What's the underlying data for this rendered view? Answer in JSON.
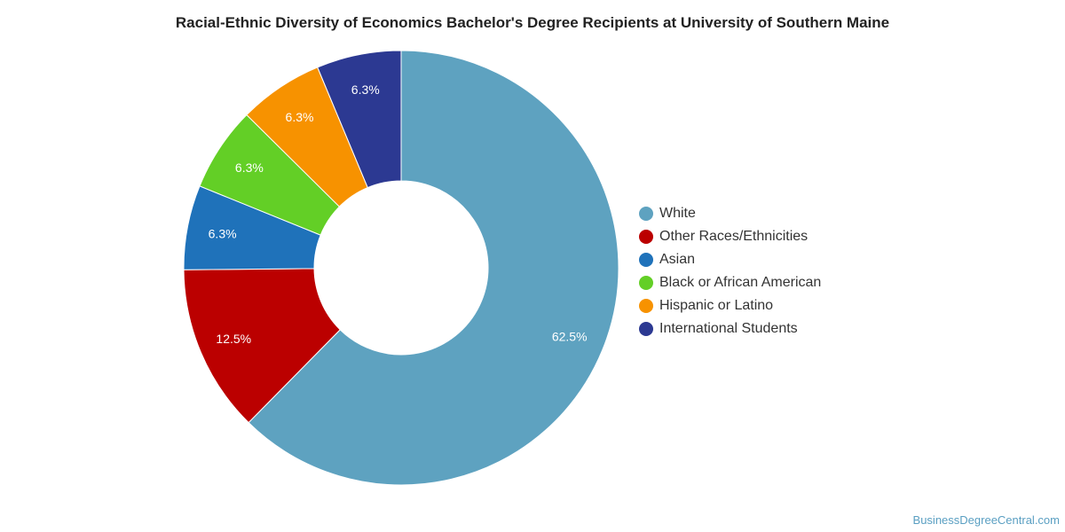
{
  "chart_data": {
    "type": "pie",
    "title": "Racial-Ethnic Diversity of Economics Bachelor's Degree Recipients at University of Southern Maine",
    "donut": true,
    "legend_position": "right",
    "slices": [
      {
        "label": "White",
        "value": 62.5,
        "display": "62.5%",
        "color": "#5ea2c0"
      },
      {
        "label": "Other Races/Ethnicities",
        "value": 12.5,
        "display": "12.5%",
        "color": "#bb0000"
      },
      {
        "label": "Asian",
        "value": 6.3,
        "display": "6.3%",
        "color": "#1f72ba"
      },
      {
        "label": "Black or African American",
        "value": 6.3,
        "display": "6.3%",
        "color": "#63cf26"
      },
      {
        "label": "Hispanic or Latino",
        "value": 6.3,
        "display": "6.3%",
        "color": "#f79200"
      },
      {
        "label": "International Students",
        "value": 6.3,
        "display": "6.3%",
        "color": "#2c3992"
      }
    ]
  },
  "watermark": "BusinessDegreeCentral.com"
}
